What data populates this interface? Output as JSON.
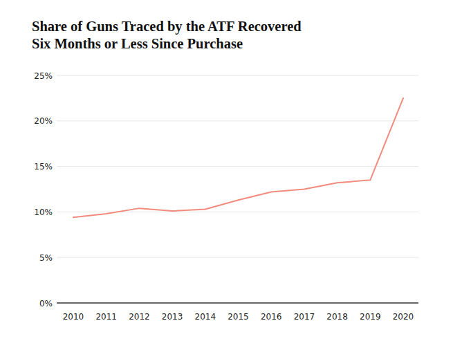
{
  "chart_data": {
    "type": "line",
    "title": "Share of Guns Traced by the ATF Recovered\nSix Months or Less Since Purchase",
    "categories": [
      "2010",
      "2011",
      "2012",
      "2013",
      "2014",
      "2015",
      "2016",
      "2017",
      "2018",
      "2019",
      "2020"
    ],
    "values": [
      9.4,
      9.8,
      10.4,
      10.1,
      10.3,
      11.3,
      12.2,
      12.5,
      13.2,
      13.5,
      22.5
    ],
    "color": "#f28b7d",
    "ylim": [
      0,
      25
    ],
    "yticks": [
      {
        "value": 0,
        "label": "0%"
      },
      {
        "value": 5,
        "label": "5%"
      },
      {
        "value": 10,
        "label": "10%"
      },
      {
        "value": 15,
        "label": "15%"
      },
      {
        "value": 20,
        "label": "20%"
      },
      {
        "value": 25,
        "label": "25%"
      }
    ],
    "grid": true
  }
}
